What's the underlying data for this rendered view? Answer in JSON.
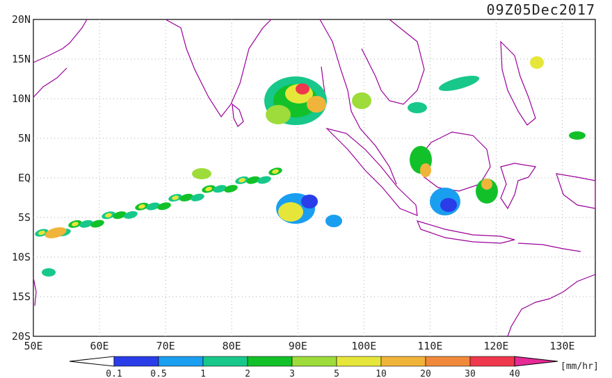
{
  "title": "09Z05Dec2017",
  "units": "[mm/hr]",
  "lat_labels": [
    "20N",
    "15N",
    "10N",
    "5N",
    "EQ",
    "5S",
    "10S",
    "15S",
    "20S"
  ],
  "lon_labels": [
    "50E",
    "60E",
    "70E",
    "80E",
    "90E",
    "100E",
    "110E",
    "120E",
    "130E"
  ],
  "colorbar": {
    "labels": [
      "0.1",
      "0.5",
      "1",
      "2",
      "3",
      "5",
      "10",
      "20",
      "30",
      "40"
    ],
    "colors": [
      "#2a3de8",
      "#1a9ef0",
      "#17c88a",
      "#12c12a",
      "#9ddc3a",
      "#e6e63a",
      "#f0b43a",
      "#f08a3a",
      "#f0384c",
      "#e62a96"
    ]
  },
  "map": {
    "lon_range": [
      50,
      135
    ],
    "lat_range": [
      -20,
      20
    ],
    "grid": true,
    "coastline_color": "#990099"
  }
}
